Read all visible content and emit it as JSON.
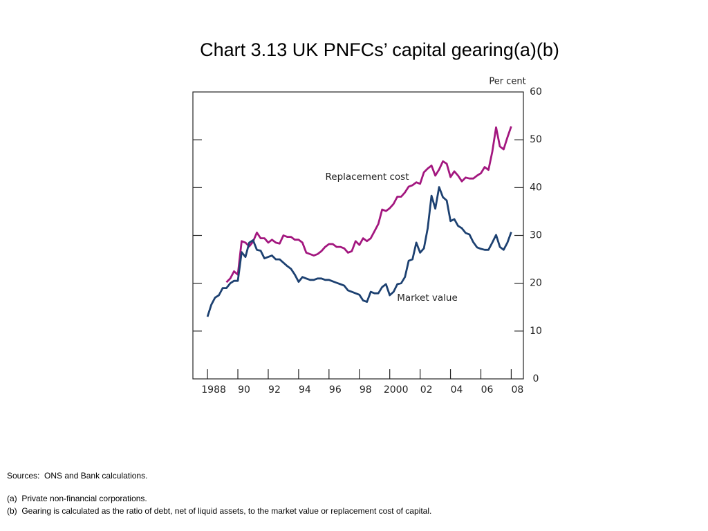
{
  "chart_data": {
    "type": "line",
    "title": "Chart 3.13  UK PNFCs’ capital gearing(a)(b)",
    "y_label": "Per cent",
    "y_axis_side": "right",
    "x": [
      1988,
      1988.25,
      1988.5,
      1988.75,
      1989,
      1989.25,
      1989.5,
      1989.75,
      1990,
      1990.25,
      1990.5,
      1990.75,
      1991,
      1991.25,
      1991.5,
      1991.75,
      1992,
      1992.25,
      1992.5,
      1992.75,
      1993,
      1993.25,
      1993.5,
      1993.75,
      1994,
      1994.25,
      1994.5,
      1994.75,
      1995,
      1995.25,
      1995.5,
      1995.75,
      1996,
      1996.25,
      1996.5,
      1996.75,
      1997,
      1997.25,
      1997.5,
      1997.75,
      1998,
      1998.25,
      1998.5,
      1998.75,
      1999,
      1999.25,
      1999.5,
      1999.75,
      2000,
      2000.25,
      2000.5,
      2000.75,
      2001,
      2001.25,
      2001.5,
      2001.75,
      2002,
      2002.25,
      2002.5,
      2002.75,
      2003,
      2003.25,
      2003.5,
      2003.75,
      2004,
      2004.25,
      2004.5,
      2004.75,
      2005,
      2005.25,
      2005.5,
      2005.75,
      2006,
      2006.25,
      2006.5,
      2006.75,
      2007,
      2007.25,
      2007.5,
      2007.75,
      2008
    ],
    "series": [
      {
        "name": "Replacement cost",
        "color": "#a3177f",
        "values": [
          null,
          null,
          null,
          null,
          null,
          20.2,
          21,
          22.5,
          21.8,
          28.8,
          28.5,
          27.7,
          28.7,
          30.6,
          29.4,
          29.4,
          28.5,
          29.1,
          28.5,
          28.3,
          30,
          29.7,
          29.7,
          29.1,
          29.1,
          28.5,
          26.4,
          26.1,
          25.8,
          26.1,
          26.7,
          27.6,
          28.2,
          28.2,
          27.6,
          27.6,
          27.3,
          26.4,
          26.7,
          28.8,
          28,
          29.4,
          28.8,
          29.4,
          30.9,
          32.4,
          35.4,
          35.1,
          35.7,
          36.6,
          38.1,
          38.1,
          39,
          40.2,
          40.5,
          41.1,
          40.8,
          43.2,
          44,
          44.6,
          42.5,
          43.8,
          45.5,
          45,
          42.2,
          43.4,
          42.5,
          41.3,
          42.1,
          41.9,
          41.9,
          42.5,
          43,
          44.3,
          43.7,
          47.5,
          52.6,
          48.6,
          48,
          50.5,
          52.8
        ]
      },
      {
        "name": "Market value",
        "color": "#1d4171",
        "values": [
          13,
          15.5,
          17,
          17.5,
          19,
          19,
          20,
          20.5,
          20.5,
          26.5,
          25.5,
          28.5,
          29,
          27,
          26.8,
          25.2,
          25.5,
          25.8,
          25,
          25,
          24.3,
          23.6,
          23,
          21.8,
          20.3,
          21.3,
          21,
          20.7,
          20.7,
          21,
          21,
          20.7,
          20.7,
          20.4,
          20.1,
          19.8,
          19.5,
          18.5,
          18.2,
          17.9,
          17.6,
          16.4,
          16.1,
          18.2,
          17.9,
          17.9,
          19.2,
          19.8,
          17.5,
          18.2,
          19.8,
          20,
          21.3,
          24.7,
          25,
          28.5,
          26.4,
          27.3,
          31.5,
          38.3,
          35.6,
          40.1,
          38,
          37.3,
          33,
          33.4,
          32,
          31.5,
          30.5,
          30.2,
          28.6,
          27.5,
          27.2,
          27,
          27,
          28.5,
          30.1,
          27.6,
          27,
          28.5,
          30.7
        ]
      }
    ],
    "xlim": [
      1987.04,
      2008.8
    ],
    "xticks": [
      1988,
      {
        "value": 1990,
        "label": "90"
      },
      {
        "value": 1992,
        "label": "92"
      },
      {
        "value": 1994,
        "label": "94"
      },
      {
        "value": 1996,
        "label": "96"
      },
      {
        "value": 1998,
        "label": "98"
      },
      2000,
      {
        "value": 2002,
        "label": "02"
      },
      {
        "value": 2004,
        "label": "04"
      },
      {
        "value": 2006,
        "label": "06"
      },
      {
        "value": 2008,
        "label": "08"
      }
    ],
    "ylim": [
      0,
      60
    ],
    "yticks": [
      0,
      10,
      20,
      30,
      40,
      50,
      60
    ],
    "grid": false
  },
  "notes": [
    "Sources:  ONS and Bank calculations.",
    "(a)  Private non-financial corporations.",
    "(b)  Gearing is calculated as the ratio of debt, net of liquid assets, to the market value or replacement cost of capital."
  ]
}
